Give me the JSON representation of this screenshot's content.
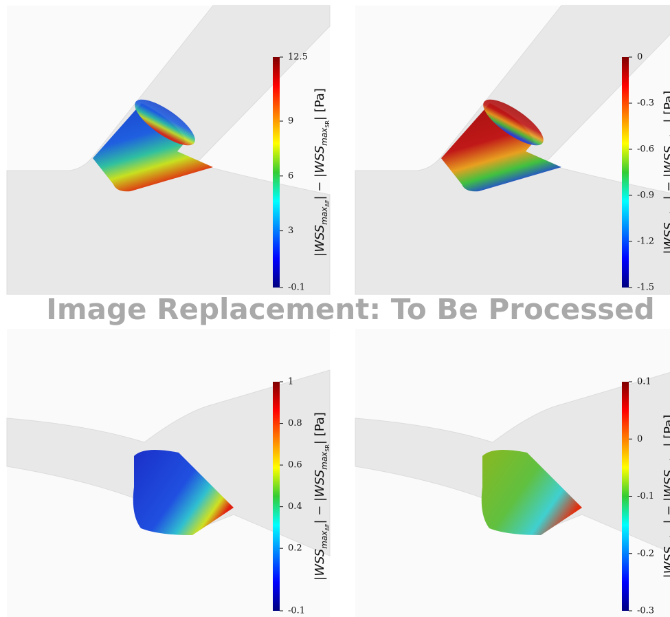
{
  "overlay_text": "Image Replacement: To Be Processed",
  "panels": [
    {
      "colorbar": {
        "range": [
          -0.1,
          12.5
        ],
        "ticks": [
          12.5,
          9,
          6,
          3,
          -0.1
        ],
        "label": [
          "|WSS",
          "max",
          "AF",
          "| − |WSS",
          "max",
          "SR",
          "| [Pa]"
        ]
      }
    },
    {
      "colorbar": {
        "range": [
          -1.5,
          0
        ],
        "ticks": [
          0,
          -0.3,
          -0.6,
          -0.9,
          -1.2,
          -1.5
        ],
        "label": [
          "|WSS",
          "min",
          "AF",
          "| − |WSS",
          "min",
          "SR",
          "| [Pa]"
        ]
      }
    },
    {
      "colorbar": {
        "range": [
          -0.1,
          1
        ],
        "ticks": [
          1,
          0.8,
          0.6,
          0.4,
          0.2,
          -0.1
        ],
        "label": [
          "|WSS",
          "max",
          "AF",
          "| − |WSS",
          "max",
          "SR",
          "| [Pa]"
        ]
      }
    },
    {
      "colorbar": {
        "range": [
          -0.3,
          0.1
        ],
        "ticks": [
          0.1,
          0,
          -0.1,
          -0.2,
          -0.3
        ],
        "label": [
          "|WSS",
          "min",
          "AF",
          "| − |WSS",
          "min",
          "SR",
          "| [Pa]"
        ]
      }
    }
  ]
}
